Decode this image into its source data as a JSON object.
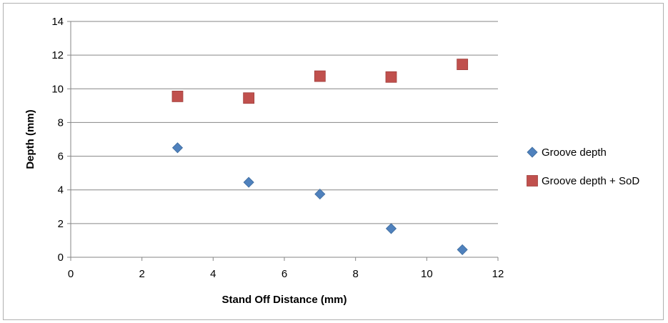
{
  "chart_data": {
    "type": "scatter",
    "title": "",
    "xlabel": "Stand Off Distance (mm)",
    "ylabel": "Depth (mm)",
    "xlim": [
      0,
      12
    ],
    "ylim": [
      0,
      14
    ],
    "x_ticks": [
      0,
      2,
      4,
      6,
      8,
      10,
      12
    ],
    "y_ticks": [
      0,
      2,
      4,
      6,
      8,
      10,
      12,
      14
    ],
    "grid": "horizontal",
    "legend_position": "right",
    "series": [
      {
        "name": "Groove depth",
        "marker": "diamond",
        "color": "#4f81bd",
        "x": [
          3,
          5,
          7,
          9,
          11
        ],
        "y": [
          6.5,
          4.45,
          3.75,
          1.7,
          0.45
        ]
      },
      {
        "name": "Groove depth + SoD",
        "marker": "square",
        "color": "#c0504d",
        "x": [
          3,
          5,
          7,
          9,
          11
        ],
        "y": [
          9.55,
          9.45,
          10.75,
          10.7,
          11.45
        ]
      }
    ]
  }
}
